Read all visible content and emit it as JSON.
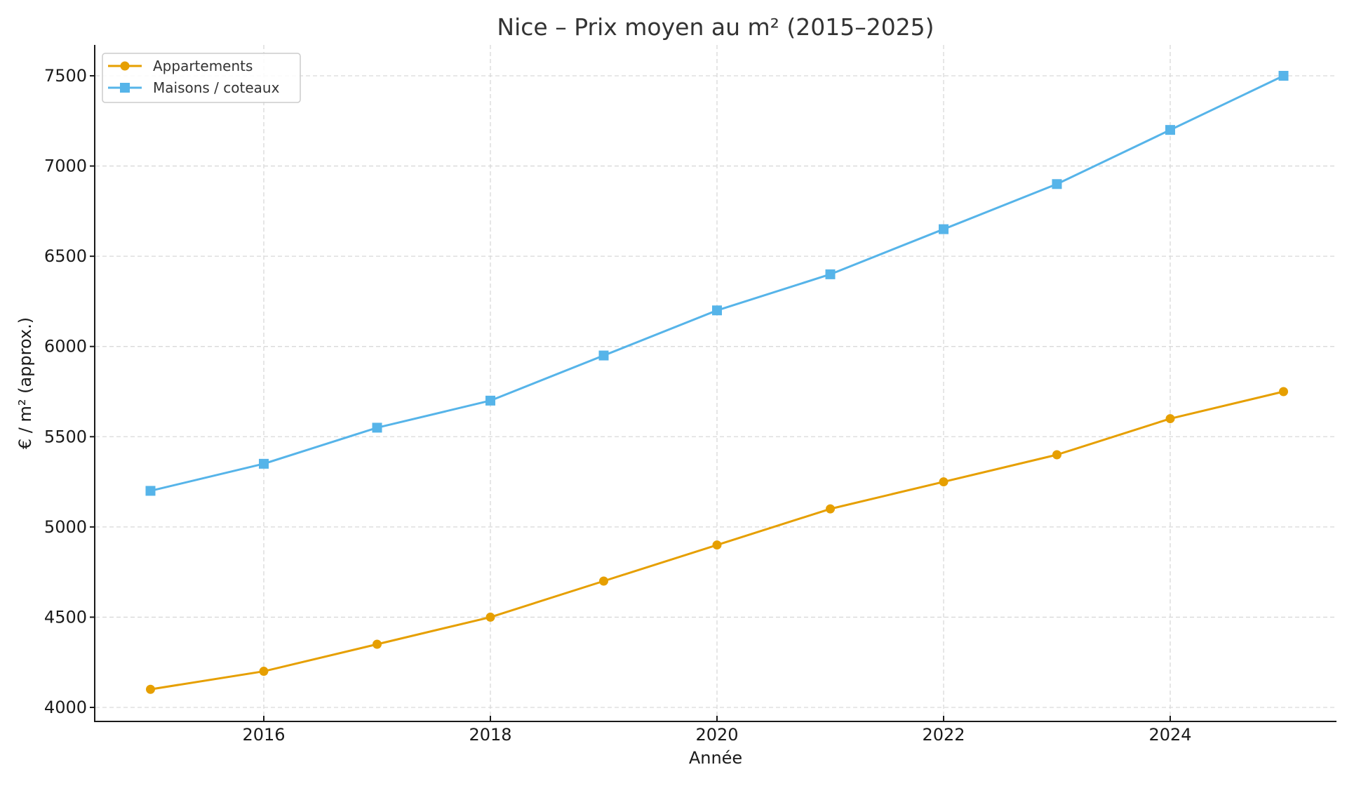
{
  "chart_data": {
    "type": "line",
    "title": "Nice – Prix moyen au m² (2015–2025)",
    "xlabel": "Année",
    "ylabel": "€ / m² (approx.)",
    "x": [
      2015,
      2016,
      2017,
      2018,
      2019,
      2020,
      2021,
      2022,
      2023,
      2024,
      2025
    ],
    "x_ticks": [
      2016,
      2018,
      2020,
      2022,
      2024
    ],
    "y_ticks": [
      4000,
      4500,
      5000,
      5500,
      6000,
      6500,
      7000,
      7500
    ],
    "xlim": [
      2014.5,
      2025.5
    ],
    "ylim": [
      3930,
      7670
    ],
    "grid": true,
    "legend_position": "upper left",
    "series": [
      {
        "name": "Appartements",
        "color": "#E69F00",
        "marker": "circle",
        "values": [
          4100,
          4200,
          4350,
          4500,
          4700,
          4900,
          5100,
          5250,
          5400,
          5600,
          5750
        ]
      },
      {
        "name": "Maisons / coteaux",
        "color": "#56B4E9",
        "marker": "square",
        "values": [
          5200,
          5350,
          5550,
          5700,
          5950,
          6200,
          6400,
          6650,
          6900,
          7200,
          7500
        ]
      }
    ]
  }
}
